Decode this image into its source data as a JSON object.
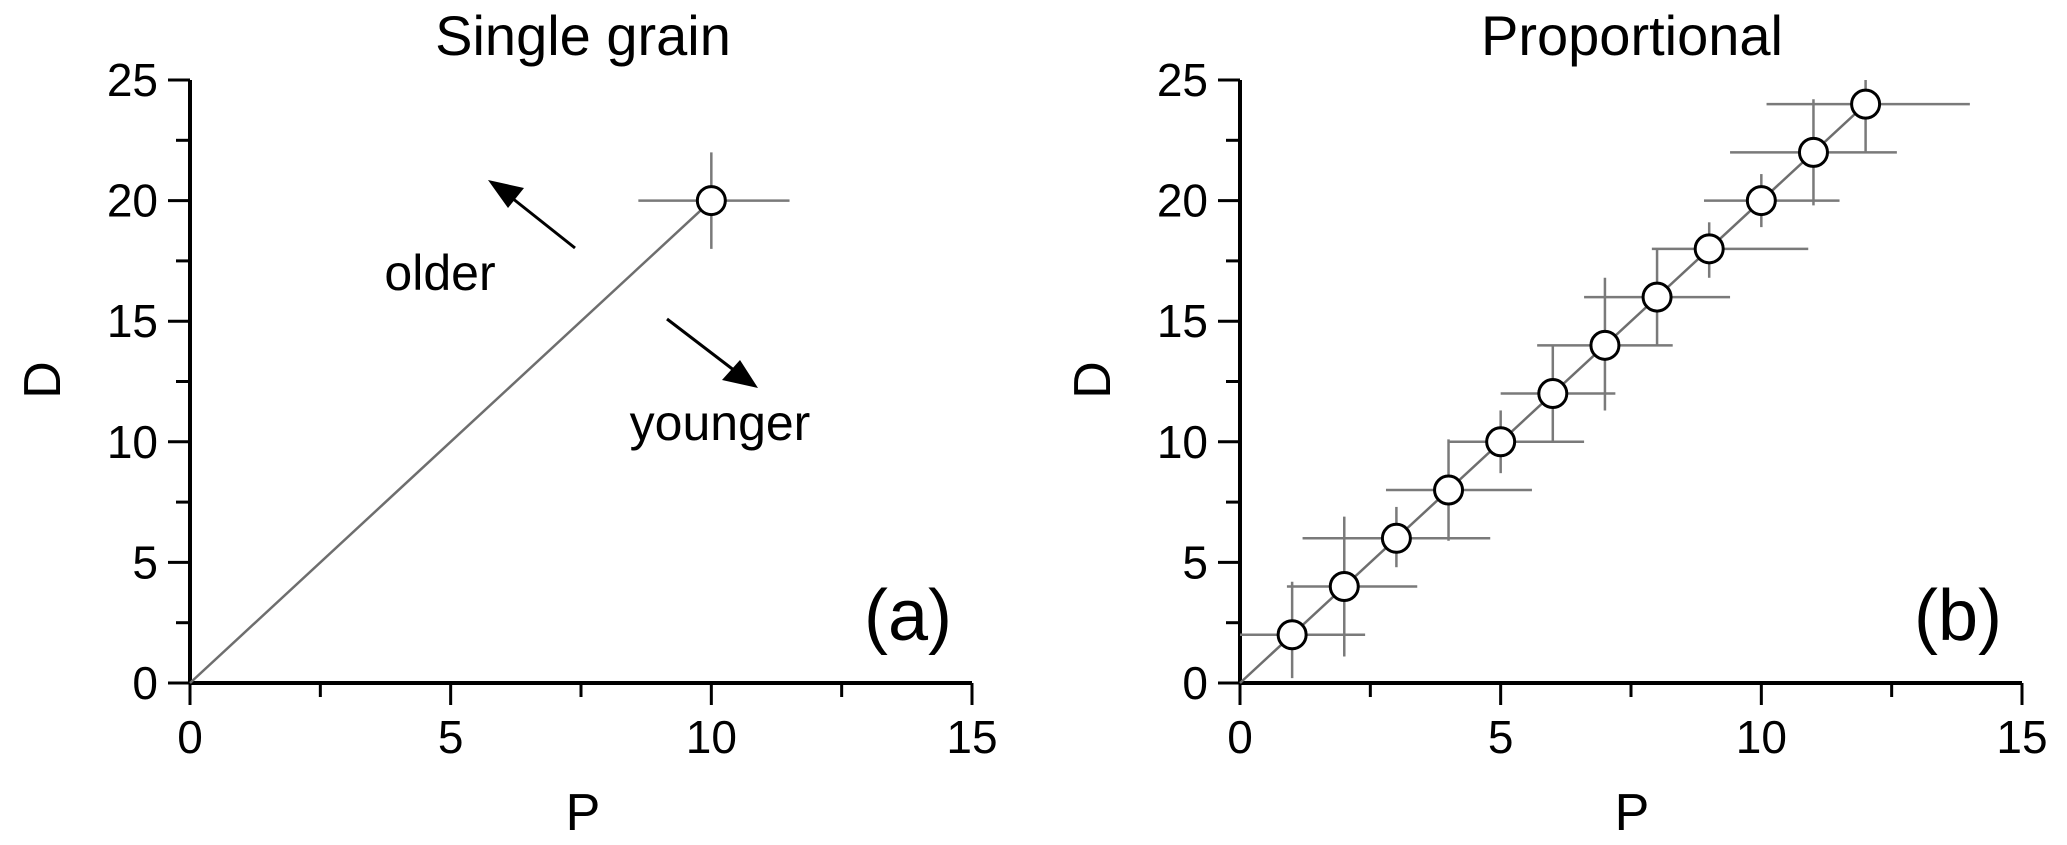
{
  "chart_data": [
    {
      "type": "scatter",
      "panel_label": "(a)",
      "title": "Single grain",
      "xlabel": "P",
      "ylabel": "D",
      "xlim": [
        0,
        15
      ],
      "ylim": [
        0,
        25
      ],
      "xticks": [
        0,
        5,
        10,
        15
      ],
      "yticks": [
        0,
        5,
        10,
        15,
        20,
        25
      ],
      "points": [
        {
          "x": 10,
          "y": 20,
          "x_err": [
            8.6,
            11.5
          ],
          "y_err": [
            18.0,
            22.0
          ]
        }
      ],
      "line": {
        "from": [
          0,
          0
        ],
        "to": [
          10,
          20
        ]
      },
      "annotations": [
        {
          "text": "older",
          "arrow": "up-left"
        },
        {
          "text": "younger",
          "arrow": "down-right"
        }
      ],
      "grid": false
    },
    {
      "type": "scatter",
      "panel_label": "(b)",
      "title": "Proportional",
      "xlabel": "P",
      "ylabel": "D",
      "xlim": [
        0,
        15
      ],
      "ylim": [
        0,
        25
      ],
      "xticks": [
        0,
        5,
        10,
        15
      ],
      "yticks": [
        0,
        5,
        10,
        15,
        20,
        25
      ],
      "points": [
        {
          "x": 1,
          "y": 2,
          "x_err": [
            0.0,
            2.4
          ],
          "y_err": [
            0.2,
            4.2
          ]
        },
        {
          "x": 2,
          "y": 4,
          "x_err": [
            0.9,
            3.4
          ],
          "y_err": [
            1.1,
            6.9
          ]
        },
        {
          "x": 3,
          "y": 6,
          "x_err": [
            1.2,
            4.8
          ],
          "y_err": [
            4.8,
            7.3
          ]
        },
        {
          "x": 4,
          "y": 8,
          "x_err": [
            2.8,
            5.6
          ],
          "y_err": [
            5.9,
            10.1
          ]
        },
        {
          "x": 5,
          "y": 10,
          "x_err": [
            4.0,
            6.6
          ],
          "y_err": [
            8.7,
            11.3
          ]
        },
        {
          "x": 6,
          "y": 12,
          "x_err": [
            5.0,
            7.2
          ],
          "y_err": [
            10.0,
            14.0
          ]
        },
        {
          "x": 7,
          "y": 14,
          "x_err": [
            5.7,
            8.3
          ],
          "y_err": [
            11.3,
            16.8
          ]
        },
        {
          "x": 8,
          "y": 16,
          "x_err": [
            6.6,
            9.4
          ],
          "y_err": [
            14.0,
            18.0
          ]
        },
        {
          "x": 9,
          "y": 18,
          "x_err": [
            7.9,
            10.9
          ],
          "y_err": [
            16.8,
            19.1
          ]
        },
        {
          "x": 10,
          "y": 20,
          "x_err": [
            8.9,
            11.5
          ],
          "y_err": [
            18.9,
            21.1
          ]
        },
        {
          "x": 11,
          "y": 22,
          "x_err": [
            9.4,
            12.6
          ],
          "y_err": [
            19.8,
            24.2
          ]
        },
        {
          "x": 12,
          "y": 24,
          "x_err": [
            10.1,
            14.0
          ],
          "y_err": [
            22.0,
            25.0
          ]
        }
      ],
      "line": {
        "from": [
          0,
          0
        ],
        "to": [
          12,
          24
        ]
      },
      "grid": false
    }
  ],
  "colors": {
    "axis": "#000000",
    "line": "#6e6e6e",
    "error_bar": "#7a7a7a",
    "marker_fill": "#ffffff",
    "marker_stroke": "#000000"
  }
}
